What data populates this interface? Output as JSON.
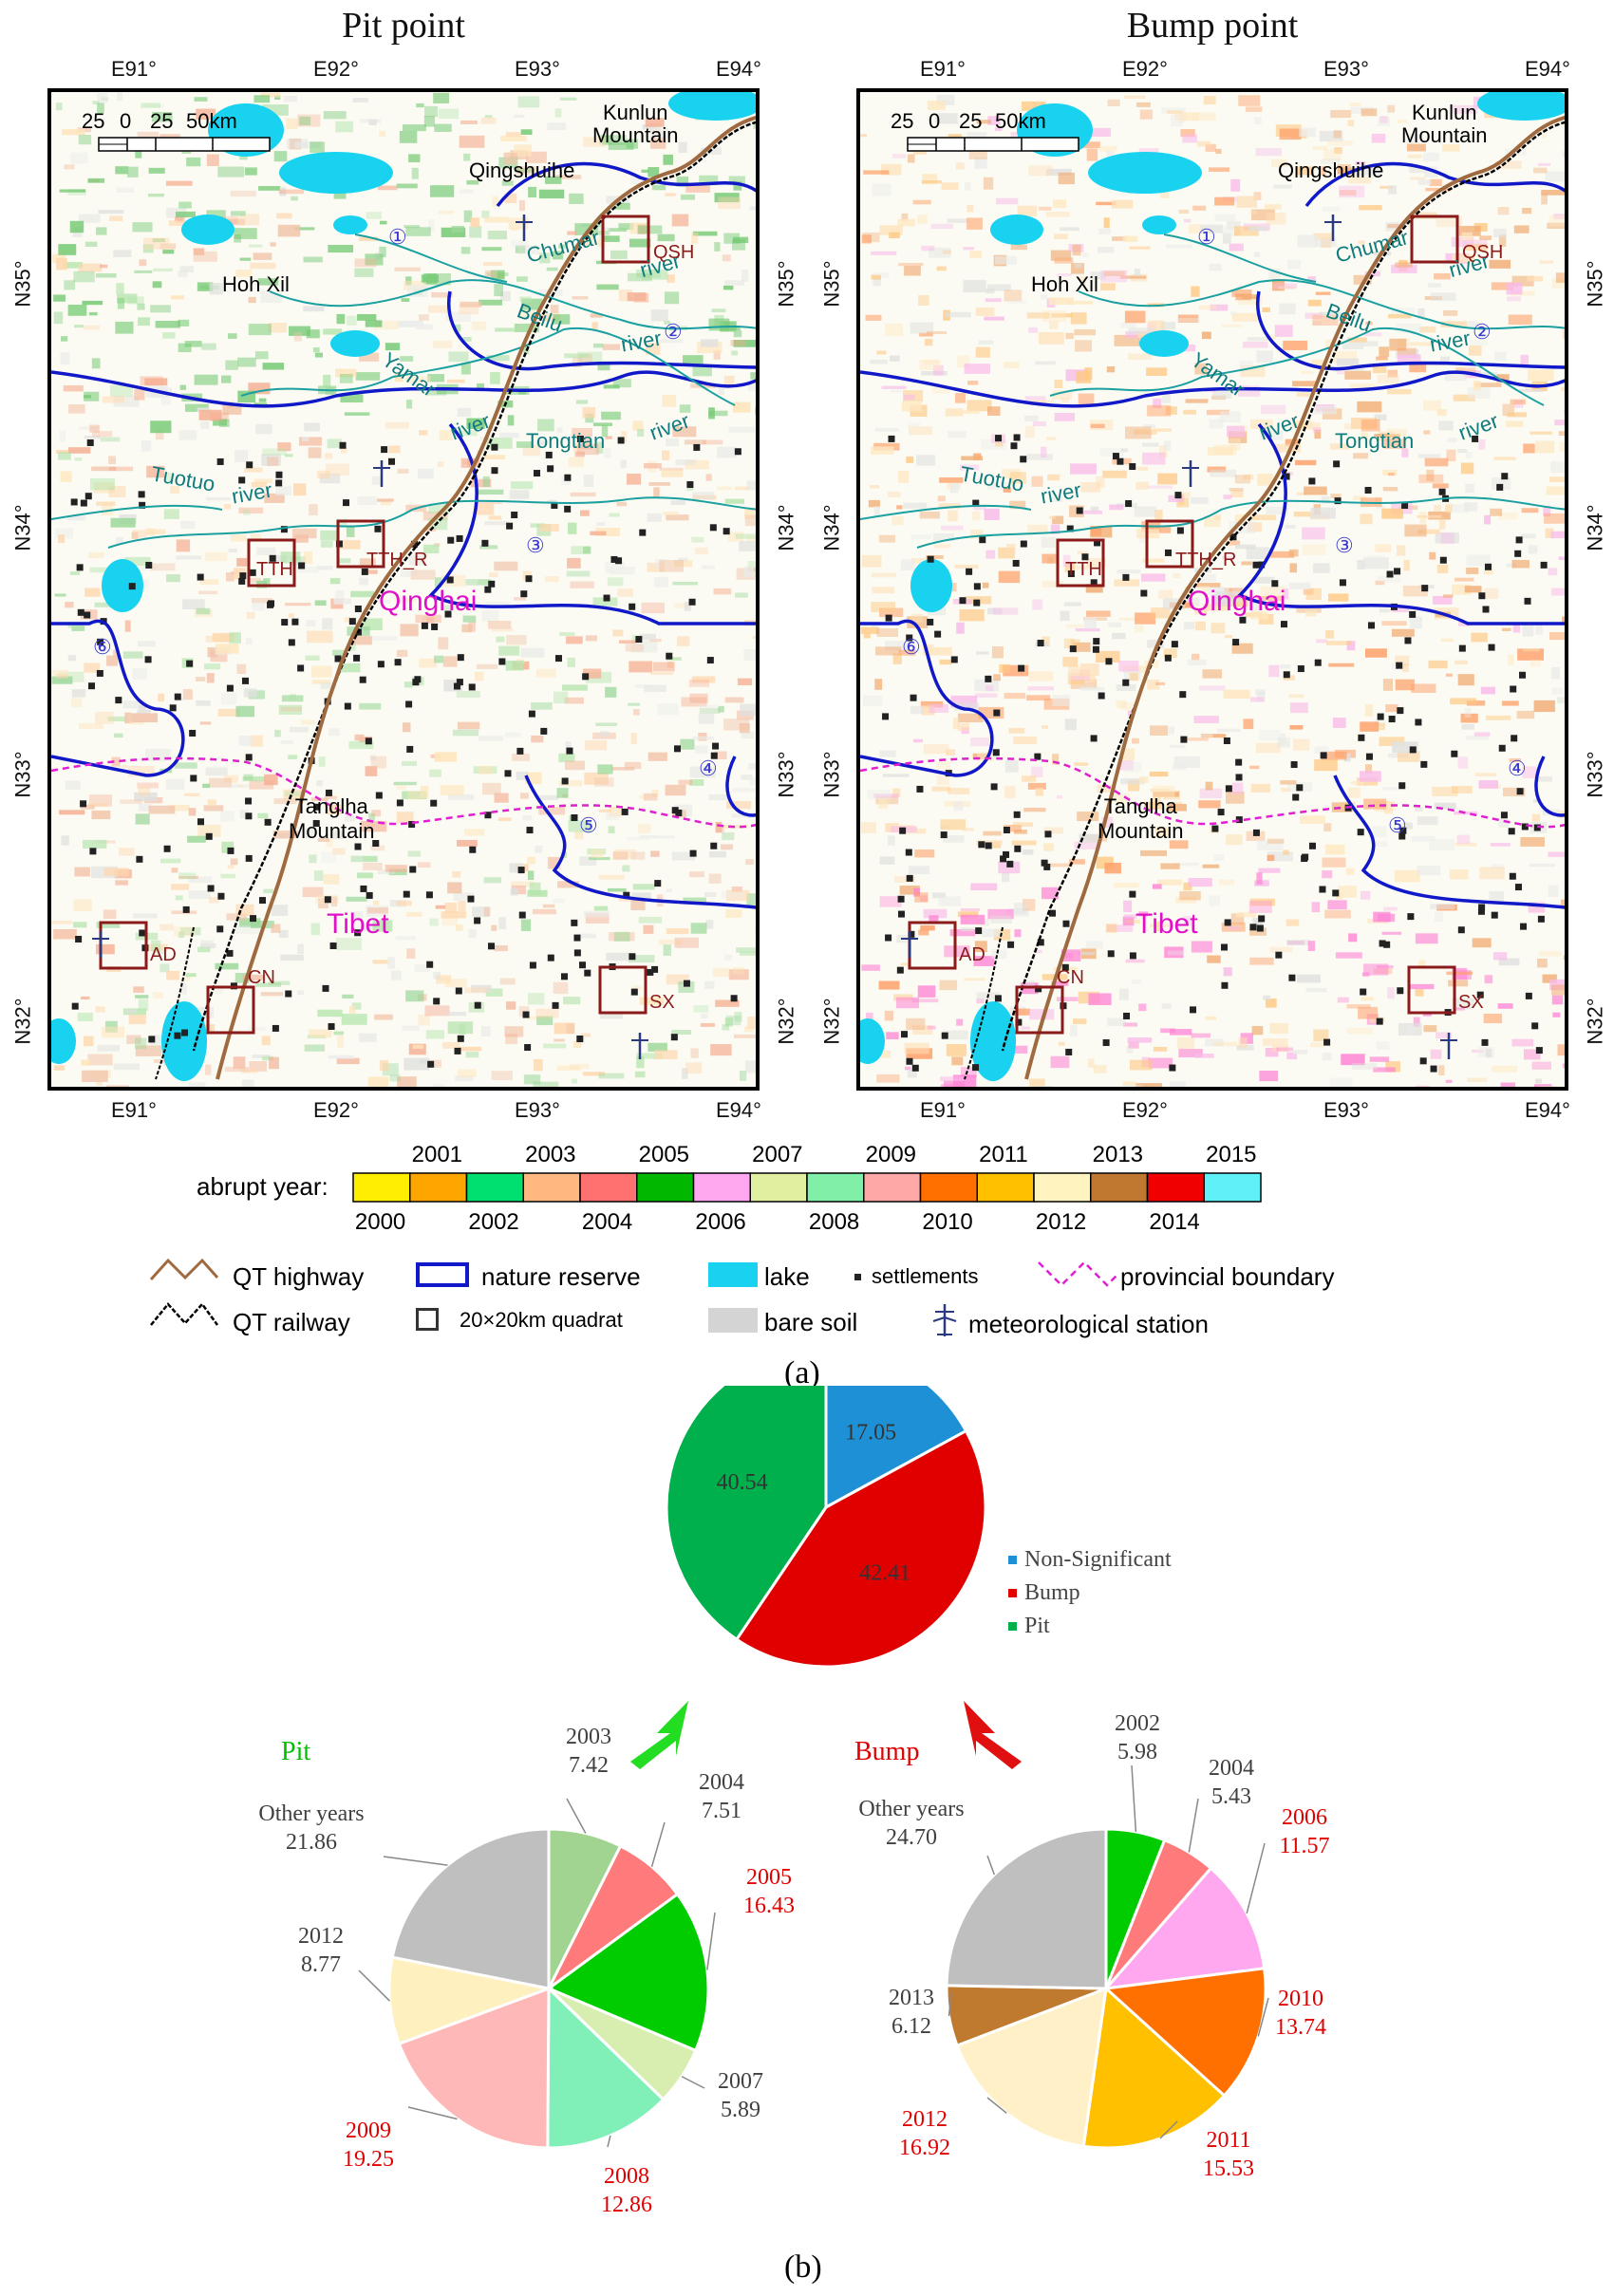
{
  "panel_a": {
    "maps": [
      {
        "title": "Pit point",
        "top_ticks": [
          "E91°",
          "E92°",
          "E93°",
          "E94°"
        ],
        "bottom_ticks": [
          "E91°",
          "E92°",
          "E93°",
          "E94°"
        ],
        "left_ticks": [
          "N35°",
          "N34°",
          "N33°",
          "N32°"
        ],
        "right_ticks": [
          "N35°",
          "N34°",
          "N33°",
          "N32°"
        ],
        "scale_labels": [
          "25",
          "0",
          "25",
          "50km"
        ],
        "places": {
          "kunlun": "Kunlun\nMountain",
          "qingshuihe": "Qingshuihe",
          "hohxil": "Hoh Xil",
          "tanglha": "Tanglha\nMountain",
          "qinghai": "Qinghai",
          "tibet": "Tibet"
        },
        "rivers": [
          "Chumar",
          "river",
          "Beilu",
          "river",
          "Yamar",
          "river",
          "Tongtian",
          "river",
          "Tuotuo",
          "river"
        ],
        "quadrats": [
          "QSH",
          "TTH",
          "TTH_R",
          "AD",
          "CN",
          "SX"
        ],
        "reserves": [
          "①",
          "②",
          "③",
          "④",
          "⑤",
          "⑥"
        ]
      },
      {
        "title": "Bump point",
        "top_ticks": [
          "E91°",
          "E92°",
          "E93°",
          "E94°"
        ],
        "bottom_ticks": [
          "E91°",
          "E92°",
          "E93°",
          "E94°"
        ],
        "left_ticks": [
          "N35°",
          "N34°",
          "N33°",
          "N32°"
        ],
        "right_ticks": [
          "N35°",
          "N34°",
          "N33°",
          "N32°"
        ],
        "scale_labels": [
          "25",
          "0",
          "25",
          "50km"
        ],
        "places": {
          "kunlun": "Kunlun\nMountain",
          "qingshuihe": "Qingshuihe",
          "hohxil": "Hoh Xil",
          "tanglha": "Tanglha\nMountain",
          "qinghai": "Qinghai",
          "tibet": "Tibet"
        },
        "rivers": [
          "Chumar",
          "river",
          "Beilu",
          "river",
          "Yamar",
          "river",
          "Tongtian",
          "river",
          "Tuotuo",
          "river"
        ],
        "quadrats": [
          "QSH",
          "TTH",
          "TTH_R",
          "AD",
          "CN",
          "SX"
        ],
        "reserves": [
          "①",
          "②",
          "③",
          "④",
          "⑤",
          "⑥"
        ]
      }
    ],
    "abrupt_year": {
      "label": "abrupt year:",
      "years": [
        "2000",
        "2001",
        "2002",
        "2003",
        "2004",
        "2005",
        "2006",
        "2007",
        "2008",
        "2009",
        "2010",
        "2011",
        "2012",
        "2013",
        "2014",
        "2015"
      ],
      "colors": [
        "#ffee00",
        "#ffa500",
        "#00e070",
        "#ffb880",
        "#ff7070",
        "#00b800",
        "#ffa8f0",
        "#e0f0a0",
        "#80f0a8",
        "#ffa8a8",
        "#ff7000",
        "#ffc000",
        "#fff4c0",
        "#c07830",
        "#f00000",
        "#60f0f8"
      ]
    },
    "legend": {
      "highway": "QT highway",
      "railway": "QT railway",
      "reserve": "nature reserve",
      "quadrat": "20×20km quadrat",
      "lake": "lake",
      "baresoil": "bare soil",
      "settlements": "settlements",
      "station": "meteorological station",
      "boundary": "provincial boundary"
    },
    "caption": "(a)"
  },
  "chart_data": [
    {
      "type": "pie",
      "labels": [
        "Non-Significant",
        "Bump",
        "Pit"
      ],
      "values": [
        17.05,
        42.41,
        40.54
      ],
      "colors": [
        "#1e90d6",
        "#e00000",
        "#00b04c"
      ],
      "legend_position": "right"
    },
    {
      "type": "pie",
      "title": "Pit",
      "labels": [
        "2003",
        "2004",
        "2005",
        "2007",
        "2008",
        "2009",
        "2012",
        "Other years"
      ],
      "values": [
        7.42,
        7.51,
        16.43,
        5.89,
        12.86,
        19.25,
        8.77,
        21.86
      ],
      "colors": [
        "#a0d490",
        "#ff7a7a",
        "#00cc00",
        "#d8eeb0",
        "#80f0b8",
        "#ffb8b8",
        "#fff0c0",
        "#bfbfbf"
      ],
      "label_colors": [
        "#404040",
        "#404040",
        "#e00000",
        "#404040",
        "#e00000",
        "#e00000",
        "#404040",
        "#404040"
      ]
    },
    {
      "type": "pie",
      "title": "Bump",
      "labels": [
        "2002",
        "2004",
        "2006",
        "2010",
        "2011",
        "2012",
        "2013",
        "Other years"
      ],
      "values": [
        5.98,
        5.43,
        11.57,
        13.74,
        15.53,
        16.92,
        6.12,
        24.7
      ],
      "display_values": [
        "5.98",
        "5.43",
        "11.57",
        "13.74",
        "15.53",
        "16.92",
        "6.12",
        "24.70"
      ],
      "colors": [
        "#00cc00",
        "#ff7a7a",
        "#ffa8f0",
        "#ff7000",
        "#ffc000",
        "#fff0c8",
        "#c07a30",
        "#bfbfbf"
      ],
      "label_colors": [
        "#404040",
        "#404040",
        "#e00000",
        "#e00000",
        "#e00000",
        "#e00000",
        "#404040",
        "#404040"
      ]
    }
  ],
  "panel_b": {
    "caption": "(b)",
    "pit_title": "Pit",
    "bump_title": "Bump"
  }
}
